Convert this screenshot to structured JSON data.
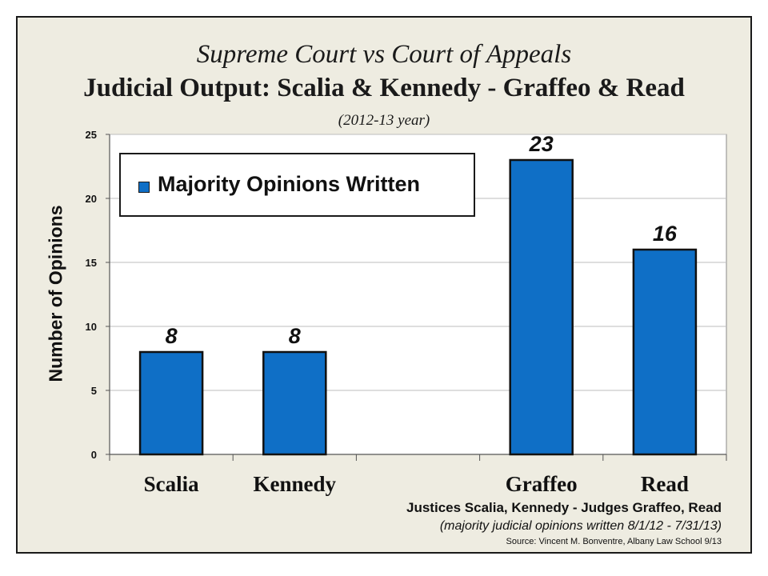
{
  "chart_data": {
    "type": "bar",
    "title": "Supreme Court vs Court of Appeals",
    "subtitle": "Judicial Output:  Scalia & Kennedy - Graffeo & Read",
    "subtitle2": "(2012-13 year)",
    "ylabel": "Number of Opinions",
    "xlabel": "",
    "categories": [
      "Scalia",
      "Kennedy",
      "",
      "Graffeo",
      "Read"
    ],
    "series": [
      {
        "name": "Majority Opinions Written",
        "values": [
          8,
          8,
          null,
          23,
          16
        ]
      }
    ],
    "data_labels": [
      "8",
      "8",
      "",
      "23",
      "16"
    ],
    "ylim": [
      0,
      25
    ],
    "yticks": [
      "0",
      "5",
      "10",
      "15",
      "20",
      "25"
    ],
    "grid": true,
    "legend_position": "top-left",
    "bar_color": "#0f6fc6"
  },
  "footnotes": {
    "line1": "Justices Scalia, Kennedy - Judges Graffeo, Read",
    "line2": "(majority judicial opinions written 8/1/12 - 7/31/13)",
    "source": "Source: Vincent M. Bonventre,  Albany Law School  9/13"
  }
}
